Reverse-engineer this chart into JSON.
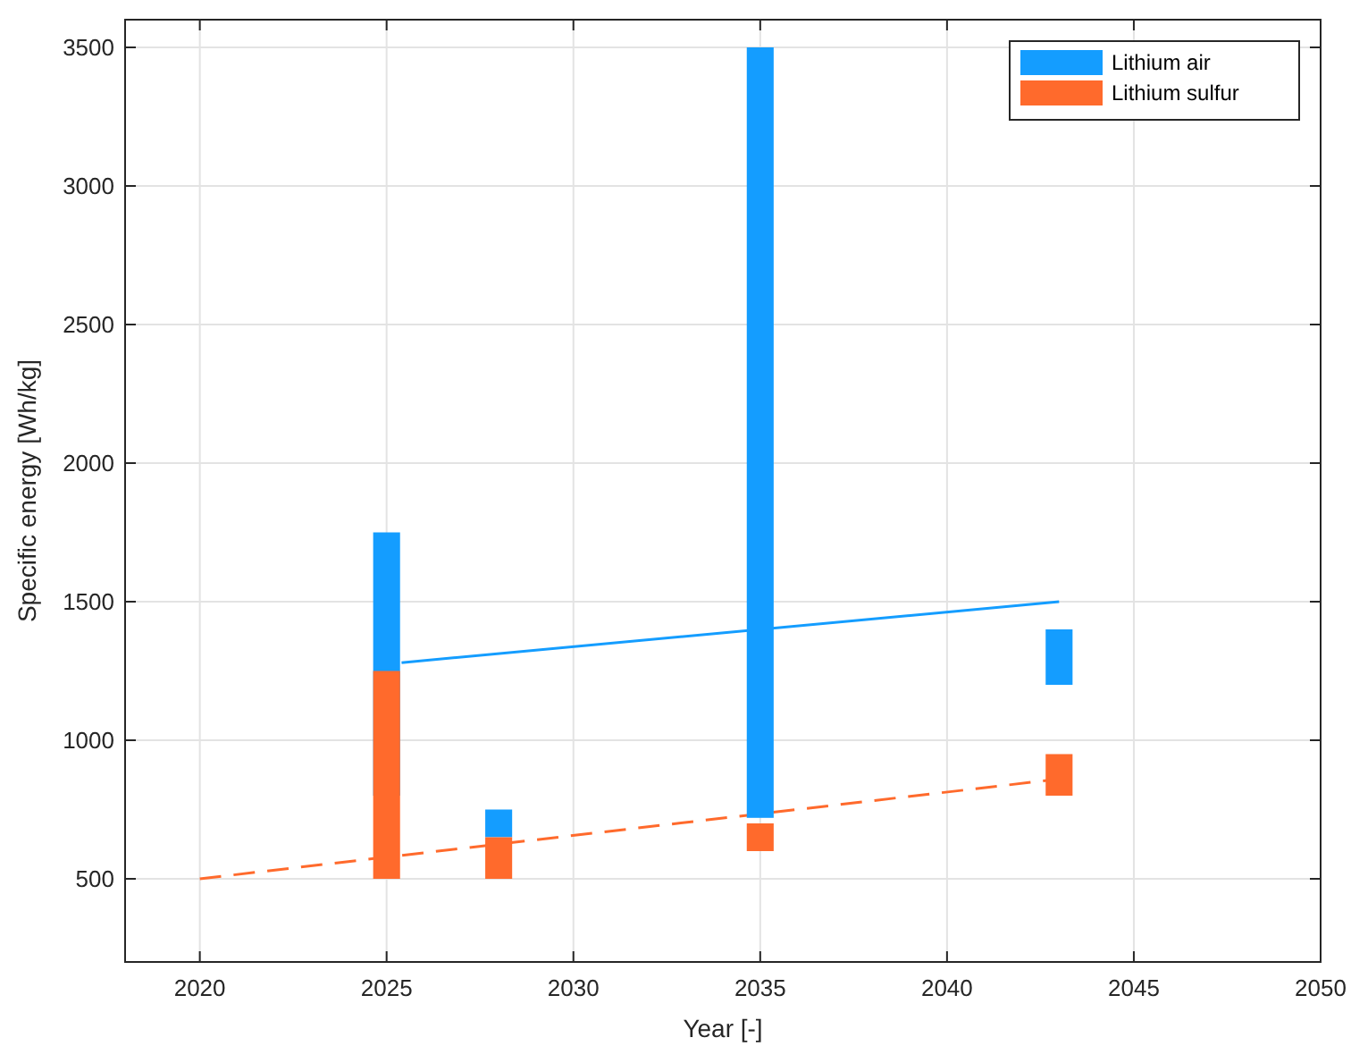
{
  "chart_data": {
    "type": "bar",
    "xlabel": "Year [-]",
    "ylabel": "Specific energy [Wh/kg]",
    "xlim": [
      2018,
      2050
    ],
    "xticks": [
      2020,
      2025,
      2030,
      2035,
      2040,
      2045,
      2050
    ],
    "ylim": [
      200,
      3600
    ],
    "yticks": [
      500,
      1000,
      1500,
      2000,
      2500,
      3000,
      3500
    ],
    "grid": true,
    "legend": "top right",
    "series": [
      {
        "name": "Lithium air",
        "color": "#149dff",
        "x": [
          2025,
          2028,
          2035,
          2043
        ],
        "base": [
          800,
          650,
          720,
          1200
        ],
        "values": [
          950,
          100,
          2780,
          200
        ]
      },
      {
        "name": "Lithium sulfur",
        "color": "#ff6a2c",
        "x": [
          2025,
          2028,
          2035,
          2043
        ],
        "base": [
          500,
          500,
          600,
          800
        ],
        "values": [
          750,
          150,
          100,
          150
        ]
      },
      {
        "type": "line",
        "color": "#149dff",
        "line_style": "solid",
        "x": [
          2025.4,
          2043
        ],
        "values": [
          1280,
          1500
        ]
      },
      {
        "type": "line",
        "color": "#ff6a2c",
        "line_style": "dashed",
        "x": [
          2020,
          2043
        ],
        "values": [
          500,
          860
        ]
      }
    ]
  }
}
